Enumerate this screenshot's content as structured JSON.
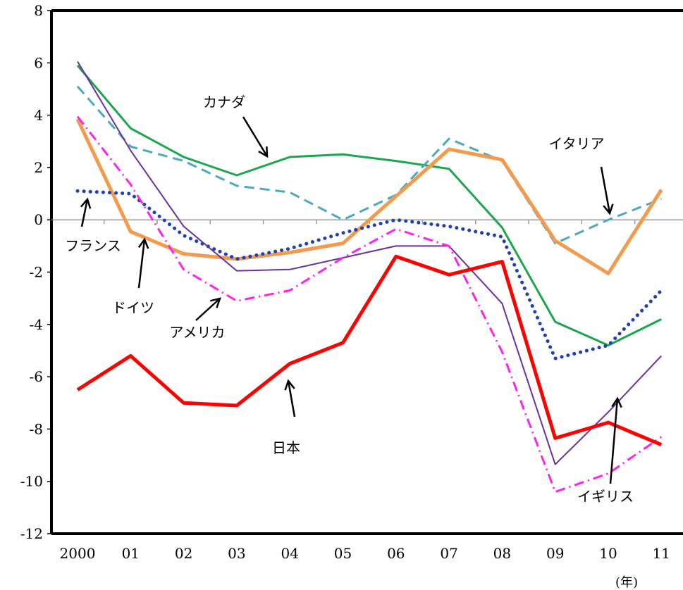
{
  "chart_data": {
    "type": "line",
    "categories": [
      "2000",
      "01",
      "02",
      "03",
      "04",
      "05",
      "06",
      "07",
      "08",
      "09",
      "10",
      "11"
    ],
    "x_unit_label": "(年)",
    "ylim": [
      -12,
      8
    ],
    "yticks": [
      8,
      6,
      4,
      2,
      0,
      -2,
      -4,
      -6,
      -8,
      -10,
      -12
    ],
    "ytick_labels": [
      "8",
      "6",
      "4",
      "2",
      "0",
      "-2",
      "-4",
      "-6",
      "-8",
      "-10",
      "-12"
    ],
    "grid": false,
    "series": [
      {
        "name": "カナダ",
        "color": "#1aa64a",
        "style": "solid",
        "width": 3,
        "values": [
          5.9,
          3.5,
          2.4,
          1.7,
          2.4,
          2.5,
          2.25,
          1.95,
          -0.3,
          -3.9,
          -4.8,
          -3.8
        ]
      },
      {
        "name": "イタリア",
        "color": "#4aa8c0",
        "style": "dashed",
        "width": 3,
        "values": [
          5.1,
          2.8,
          2.25,
          1.3,
          1.05,
          0.0,
          0.95,
          3.1,
          2.25,
          -0.9,
          0.0,
          0.8
        ]
      },
      {
        "name": "ドイツ",
        "color": "#f39a4c",
        "style": "solid",
        "width": 5,
        "values": [
          3.85,
          -0.45,
          -1.3,
          -1.5,
          -1.25,
          -0.9,
          0.9,
          2.7,
          2.3,
          -0.8,
          -2.05,
          1.15
        ]
      },
      {
        "name": "フランス",
        "color": "#1f3fb5",
        "style": "dotted",
        "width": 5,
        "values": [
          1.1,
          1.0,
          -0.6,
          -1.5,
          -1.1,
          -0.5,
          0.0,
          -0.25,
          -0.65,
          -5.3,
          -4.8,
          -2.7
        ]
      },
      {
        "name": "イギリス",
        "color": "#6a2fa0",
        "style": "solid",
        "width": 2,
        "values": [
          6.05,
          2.65,
          -0.25,
          -1.95,
          -1.9,
          -1.45,
          -1.0,
          -1.0,
          -3.2,
          -9.35,
          -7.35,
          -5.2
        ]
      },
      {
        "name": "アメリカ",
        "color": "#ff22ee",
        "style": "dashdot",
        "width": 3,
        "values": [
          3.95,
          1.35,
          -1.9,
          -3.1,
          -2.7,
          -1.45,
          -0.35,
          -1.0,
          -5.05,
          -10.4,
          -9.7,
          -8.3
        ]
      },
      {
        "name": "日本",
        "color": "#ff0000",
        "style": "solid",
        "width": 5,
        "values": [
          -6.5,
          -5.2,
          -7.0,
          -7.1,
          -5.5,
          -4.7,
          -1.4,
          -2.1,
          -1.6,
          -8.35,
          -7.75,
          -8.6
        ]
      }
    ],
    "annotations": [
      {
        "label": "カナダ",
        "series": "カナダ"
      },
      {
        "label": "イタリア",
        "series": "イタリア"
      },
      {
        "label": "フランス",
        "series": "フランス"
      },
      {
        "label": "ドイツ",
        "series": "ドイツ"
      },
      {
        "label": "アメリカ",
        "series": "アメリカ"
      },
      {
        "label": "日本",
        "series": "日本"
      },
      {
        "label": "イギリス",
        "series": "イギリス"
      }
    ]
  }
}
